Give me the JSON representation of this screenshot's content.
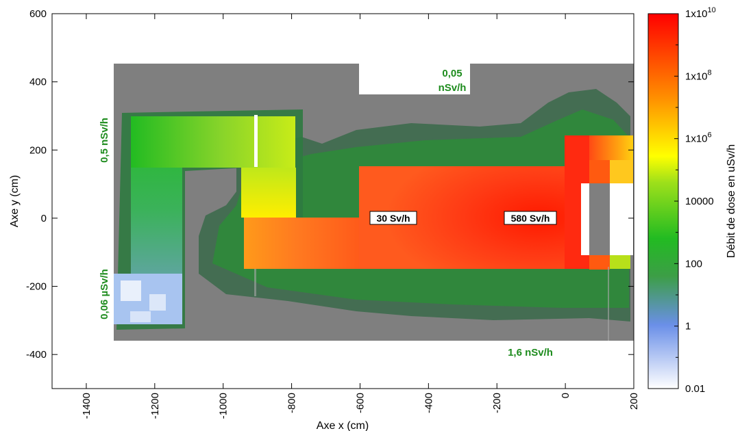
{
  "chart_data": {
    "type": "heatmap",
    "xlabel": "Axe x (cm)",
    "ylabel": "Axe y (cm)",
    "xlim": [
      -1500,
      200
    ],
    "ylim": [
      -500,
      600
    ],
    "x_ticks": [
      "-1400",
      "-1200",
      "-1000",
      "-800",
      "-600",
      "-400",
      "-200",
      "0",
      "200"
    ],
    "x_tick_values": [
      -1400,
      -1200,
      -1000,
      -800,
      -600,
      -400,
      -200,
      0,
      200
    ],
    "y_ticks": [
      "600",
      "400",
      "200",
      "0",
      "-200",
      "-400"
    ],
    "y_tick_values": [
      600,
      400,
      200,
      0,
      -200,
      -400
    ],
    "colorbar": {
      "label": "Débit de dose en uSv/h",
      "scale": "log",
      "range": [
        0.01,
        10000000000
      ],
      "ticks": [
        {
          "value": 10000000000,
          "base": "1x10",
          "exp": "10"
        },
        {
          "value": 100000000,
          "base": "1x10",
          "exp": "8"
        },
        {
          "value": 1000000,
          "base": "1x10",
          "exp": "6"
        },
        {
          "value": 10000,
          "base": "10000",
          "exp": ""
        },
        {
          "value": 100,
          "base": "100",
          "exp": ""
        },
        {
          "value": 1,
          "base": "1",
          "exp": ""
        },
        {
          "value": 0.01,
          "base": "0.01",
          "exp": ""
        }
      ],
      "colors": [
        "#ffffff",
        "#6a8fe8",
        "#22bb22",
        "#ffff00",
        "#ff8800",
        "#ff0000"
      ]
    },
    "annotations": [
      {
        "text": "0,05",
        "text2": "nSv/h",
        "x": -370,
        "y": 400,
        "style": "green"
      },
      {
        "text": "0,5 nSv/h",
        "x": -1340,
        "y": 230,
        "style": "green-vertical"
      },
      {
        "text": "0,06 µSv/h",
        "x": -1340,
        "y": -170,
        "style": "green-vertical"
      },
      {
        "text": "1,6 nSv/h",
        "x": -150,
        "y": -395,
        "style": "green"
      },
      {
        "text": "30 Sv/h",
        "x": -530,
        "y": 0,
        "style": "box"
      },
      {
        "text": "580 Sv/h",
        "x": -100,
        "y": 0,
        "style": "box"
      }
    ]
  }
}
